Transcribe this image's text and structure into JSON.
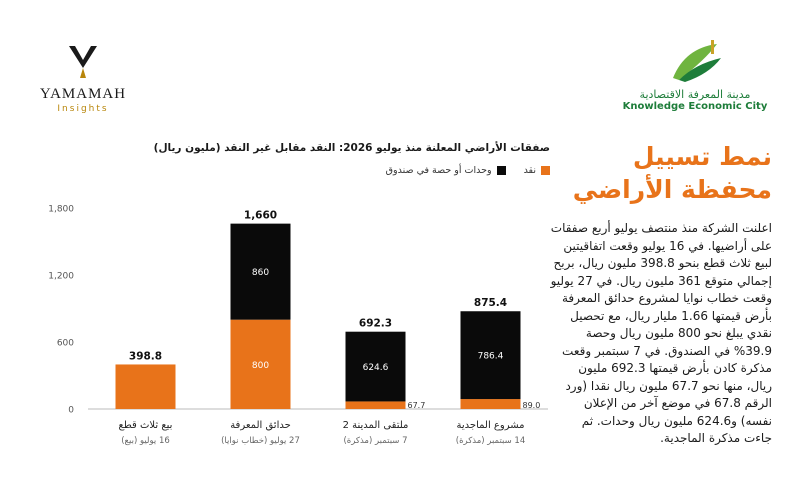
{
  "logo_left": {
    "brand": "YAMAMAH",
    "sub": "Insights"
  },
  "logo_right": {
    "arabic": "مدينة المعرفة الاقتصادية",
    "english": "Knowledge Economic City"
  },
  "headline": "نمط تسييل محفظة الأراضي",
  "body": "اعلنت الشركة منذ منتصف يوليو أربع صفقات على أراضيها. في 16 يوليو وقعت اتفاقيتين لبيع ثلاث قطع بنحو 398.8 مليون ريال، بربح إجمالي متوقع 361 مليون ريال. في 27 يوليو وقعت خطاب نوايا لمشروع حدائق المعرفة بأرض قيمتها 1.66 مليار ريال، مع تحصيل نقدي يبلغ نحو 800 مليون ريال وحصة 39.9% في الصندوق. في 7 سبتمبر وقعت مذكرة كادن بأرض قيمتها 692.3 مليون ريال، منها نحو 67.7 مليون ريال نقدا (ورد الرقم 67.8 في موضع آخر من الإعلان نفسه) و624.6 مليون ريال وحدات. ثم جاءت مذكرة الماجدية.",
  "colors": {
    "cash": "#e8731a",
    "units": "#0a0a0a",
    "accent": "#e8731a"
  },
  "chart_data": {
    "type": "bar",
    "stacked": true,
    "title": "صفقات الأراضي المعلنة منذ يوليو 2026: النقد مقابل غير النقد (مليون ريال)",
    "categories": [
      "بيع ثلاث قطع",
      "حدائق المعرفة",
      "ملتقى المدينة 2",
      "مشروع الماجدية"
    ],
    "category_sublabels": [
      "16 يوليو (بيع)",
      "27 يوليو (خطاب نوايا)",
      "7 سبتمبر (مذكرة)",
      "14 سبتمبر (مذكرة)"
    ],
    "series": [
      {
        "name": "نقد",
        "color": "#e8731a",
        "values": [
          398.8,
          800,
          67.7,
          89.0
        ],
        "labels": [
          "",
          "800",
          "67.7",
          "89.0"
        ]
      },
      {
        "name": "وحدات أو حصة في صندوق",
        "color": "#0a0a0a",
        "values": [
          0,
          860,
          624.6,
          786.4
        ],
        "labels": [
          "",
          "860",
          "624.6",
          "786.4"
        ]
      }
    ],
    "totals": [
      "398.8",
      "1,660",
      "692.3",
      "875.4"
    ],
    "ylim": [
      0,
      1800
    ],
    "yticks": [
      0,
      600,
      1200,
      1800
    ],
    "ytick_labels": [
      "0",
      "600",
      "1,200",
      "1,800"
    ],
    "grid": false,
    "legend_position": "top"
  }
}
